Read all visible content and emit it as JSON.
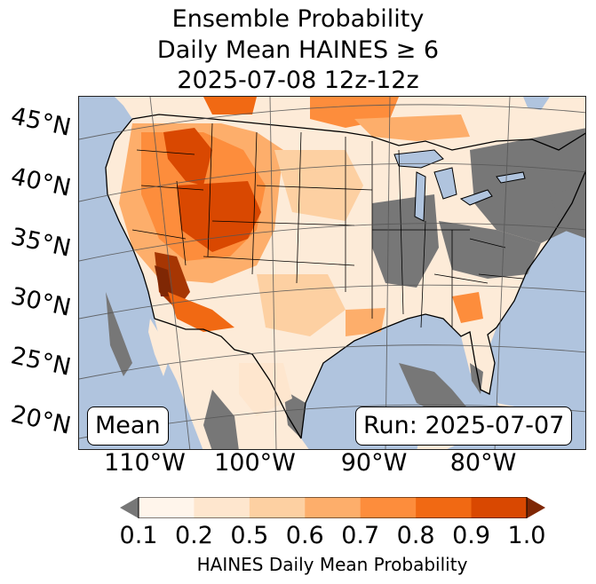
{
  "title": {
    "line1": "Ensemble Probability",
    "line2": "Daily Mean HAINES ≥ 6",
    "line3": "2025-07-08 12z-12z"
  },
  "map": {
    "lat_labels": [
      "45°N",
      "40°N",
      "35°N",
      "30°N",
      "25°N",
      "20°N"
    ],
    "lon_labels": [
      "110°W",
      "100°W",
      "90°W",
      "80°W"
    ],
    "mean_label": "Mean",
    "run_label": "Run: 2025-07-07",
    "colors": {
      "ocean": "#b0c4de",
      "missing": "#777777",
      "land_low": "#fdebd8"
    }
  },
  "colorbar": {
    "label": "HAINES Daily Mean Probability",
    "ticks": [
      "0.1",
      "0.2",
      "0.5",
      "0.6",
      "0.7",
      "0.8",
      "0.9",
      "1.0"
    ],
    "under_color": "#777777",
    "over_color": "#7f2704",
    "bins": [
      "#fff5eb",
      "#fee6ce",
      "#fdd0a2",
      "#fdae6b",
      "#fd8d3c",
      "#f16913",
      "#d94801"
    ]
  }
}
